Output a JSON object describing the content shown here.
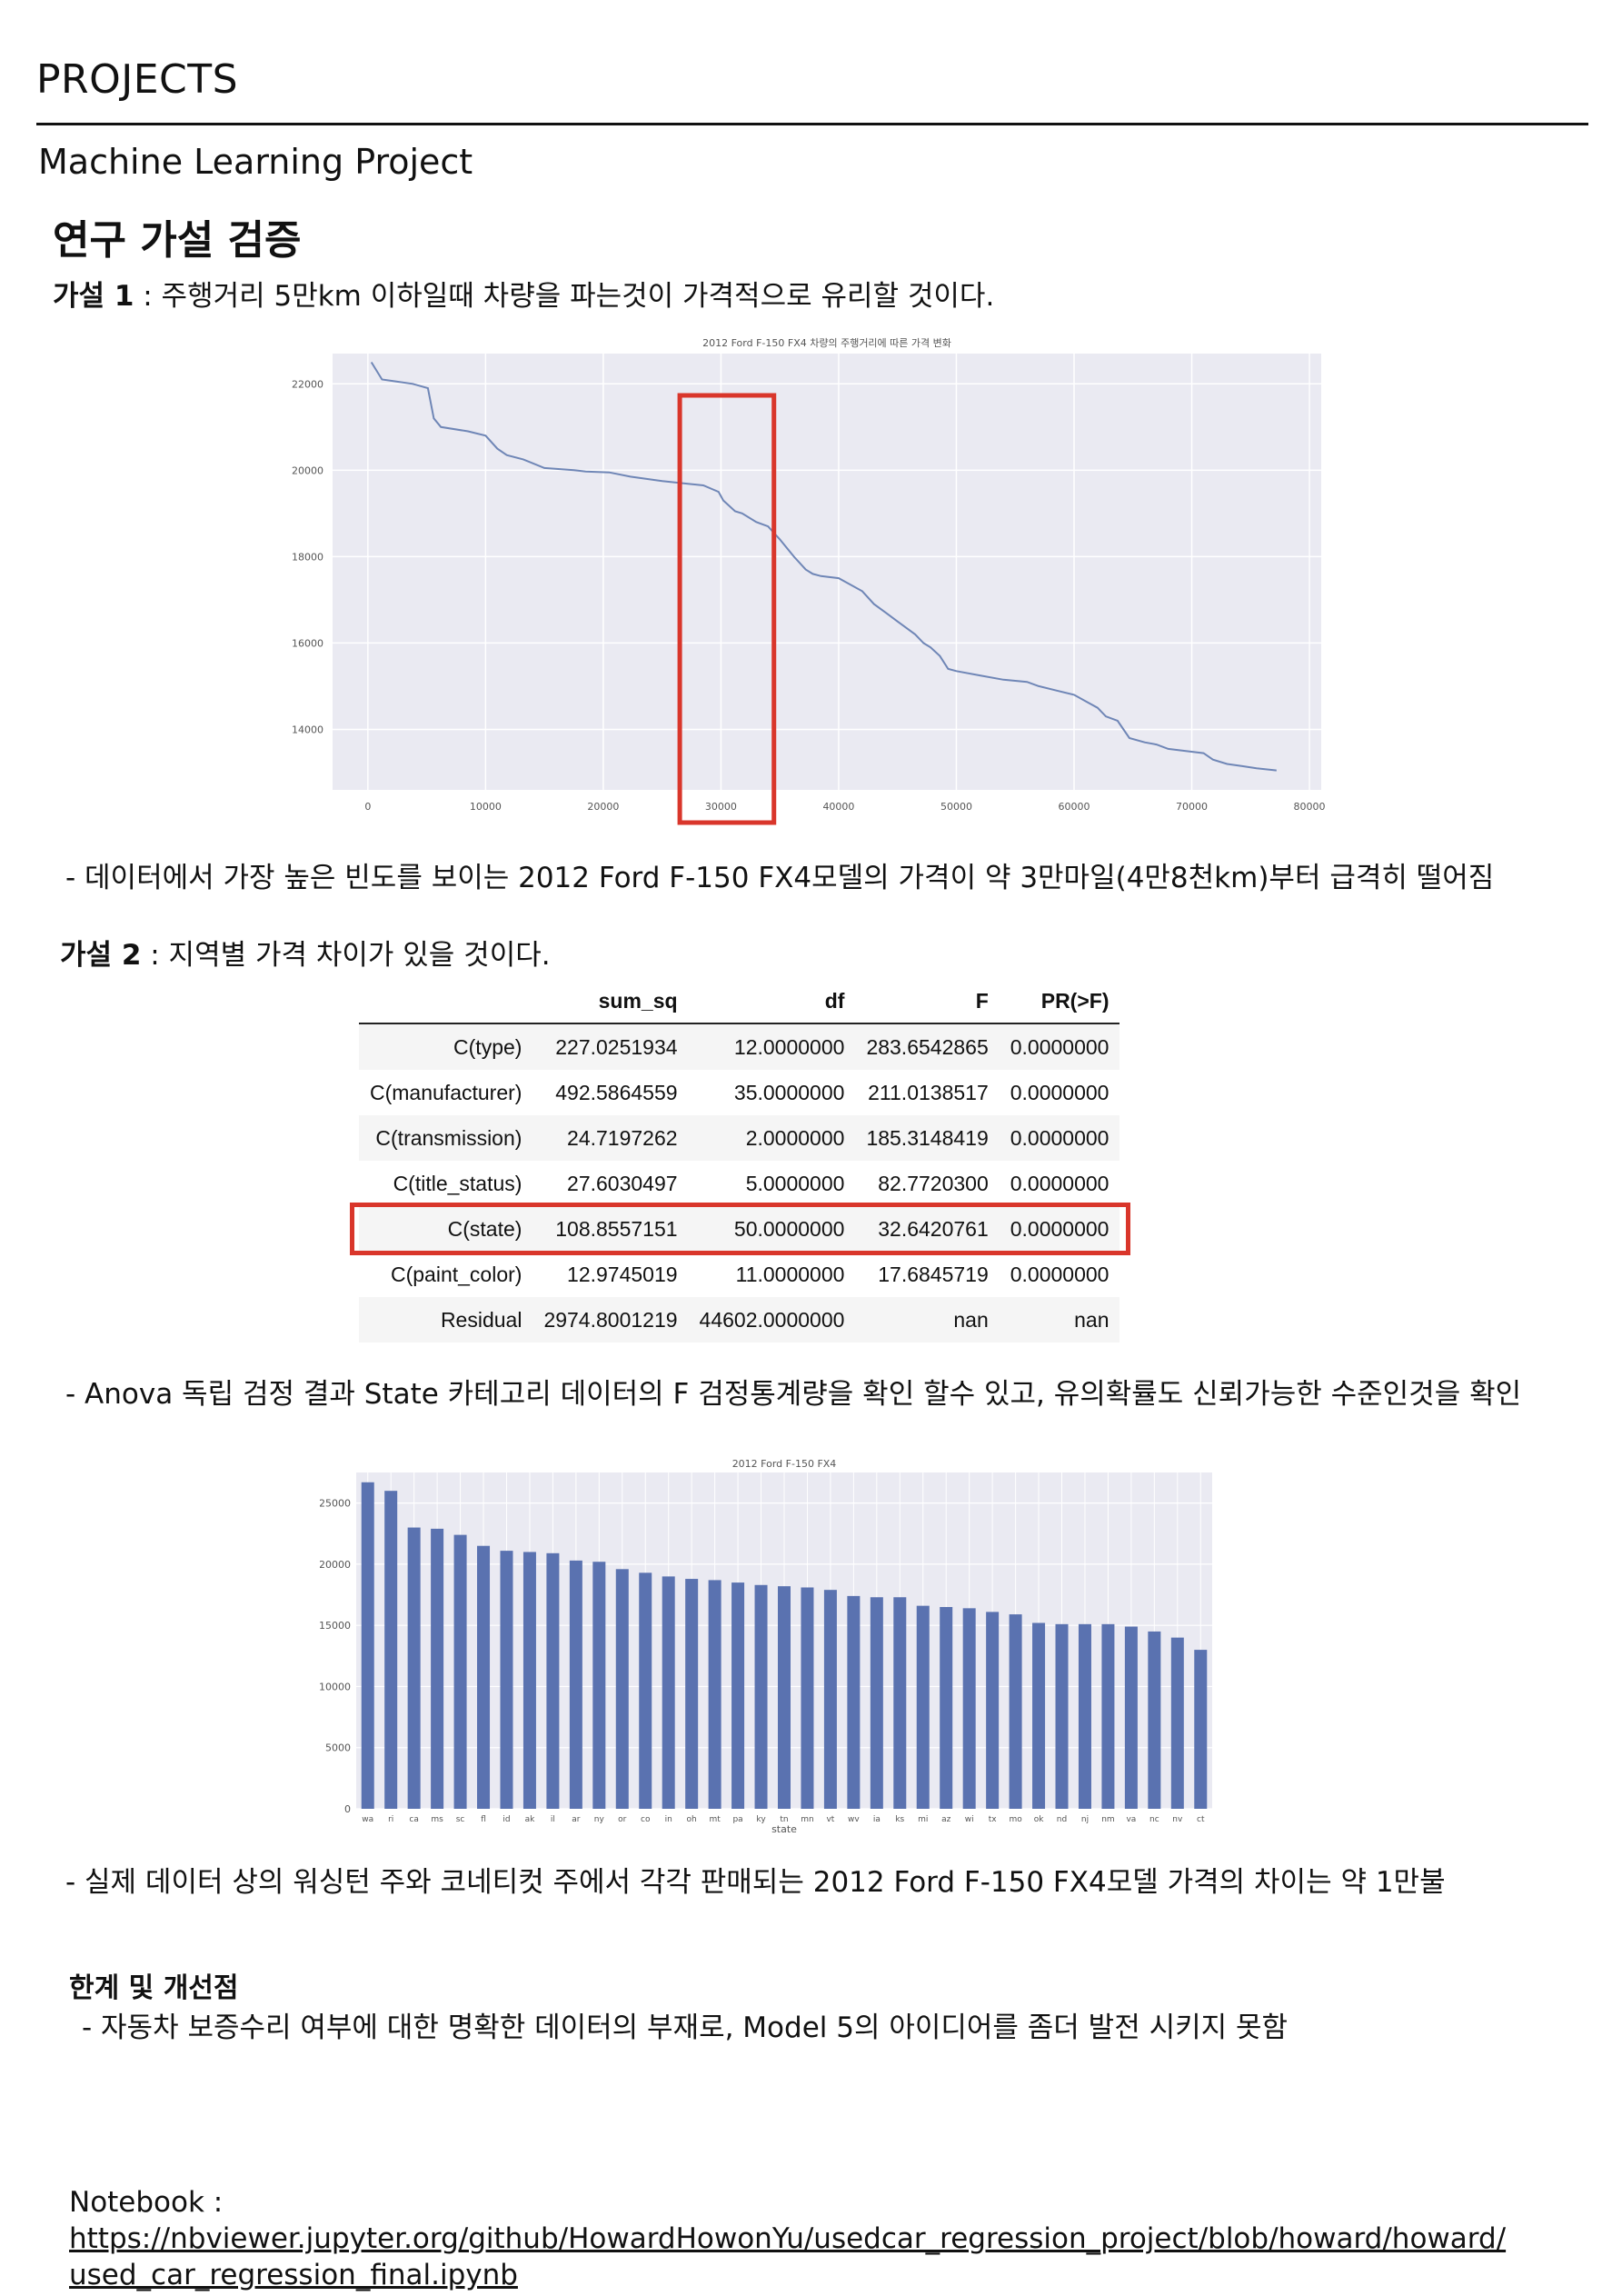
{
  "header": {
    "title": "PROJECTS"
  },
  "subtitle": "Machine Learning Project",
  "section_title": "연구 가설 검증",
  "hypothesis1": {
    "label": "가설 1",
    "text": " : 주행거리 5만km 이하일때 차량을 파는것이 가격적으로 유리할 것이다."
  },
  "note1": "- 데이터에서 가장 높은 빈도를 보이는 2012 Ford F-150 FX4모델의 가격이 약 3만마일(4만8천km)부터 급격히 떨어짐",
  "hypothesis2": {
    "label": "가설 2",
    "text": " : 지역별 가격 차이가 있을 것이다."
  },
  "note2": "- Anova 독립 검정 결과 State 카테고리 데이터의 F 검정통계량을 확인 할수 있고, 유의확률도 신뢰가능한 수준인것을 확인",
  "note3": "- 실제 데이터 상의 워싱턴 주와 코네티컷 주에서 각각 판매되는 2012 Ford F-150 FX4모델 가격의 차이는 약 1만불",
  "limits": {
    "title": "한계 및 개선점",
    "text": "- 자동차 보증수리 여부에 대한 명확한 데이터의 부재로, Model 5의 아이디어를 좀더 발전 시키지 못함"
  },
  "notebook": {
    "label": "Notebook : ",
    "url_line1": "https://nbviewer.jupyter.org/github/HowardHowonYu/usedcar_regression_project/blob/howard/howard/",
    "url_line2": "used_car_regression_final.ipynb"
  },
  "anova": {
    "columns": [
      "",
      "sum_sq",
      "df",
      "F",
      "PR(>F)"
    ],
    "rows": [
      [
        "C(type)",
        "227.0251934",
        "12.0000000",
        "283.6542865",
        "0.0000000"
      ],
      [
        "C(manufacturer)",
        "492.5864559",
        "35.0000000",
        "211.0138517",
        "0.0000000"
      ],
      [
        "C(transmission)",
        "24.7197262",
        "2.0000000",
        "185.3148419",
        "0.0000000"
      ],
      [
        "C(title_status)",
        "27.6030497",
        "5.0000000",
        "82.7720300",
        "0.0000000"
      ],
      [
        "C(state)",
        "108.8557151",
        "50.0000000",
        "32.6420761",
        "0.0000000"
      ],
      [
        "C(paint_color)",
        "12.9745019",
        "11.0000000",
        "17.6845719",
        "0.0000000"
      ],
      [
        "Residual",
        "2974.8001219",
        "44602.0000000",
        "nan",
        "nan"
      ]
    ],
    "highlight_row": 4,
    "highlight_color": "#d9362b"
  },
  "chart_data": [
    {
      "type": "line",
      "title": "2012 Ford F-150 FX4 차량의 주행거리에 따른 가격 변화",
      "xlim": [
        -3000,
        81000
      ],
      "ylim": [
        12600,
        22700
      ],
      "xticks": [
        0,
        10000,
        20000,
        30000,
        40000,
        50000,
        60000,
        70000,
        80000
      ],
      "yticks": [
        14000,
        16000,
        18000,
        20000,
        22000
      ],
      "line_color": "#6f86b6",
      "highlight_box": {
        "x0": 26500,
        "x1": 34500,
        "color": "#d9362b"
      },
      "x": [
        300,
        1200,
        2500,
        3800,
        5100,
        5600,
        6200,
        8500,
        10000,
        11000,
        11800,
        13200,
        15000,
        17500,
        18500,
        20500,
        22300,
        25000,
        28500,
        29800,
        30200,
        31200,
        31800,
        33000,
        34000,
        35000,
        36200,
        37200,
        37800,
        38500,
        40000,
        42000,
        43000,
        44000,
        45000,
        45500,
        46500,
        47200,
        47800,
        48600,
        49300,
        50000,
        52000,
        54000,
        56000,
        57000,
        58500,
        60000,
        61000,
        62000,
        62700,
        63700,
        64700,
        66000,
        67000,
        68000,
        69500,
        71000,
        71800,
        73000,
        74300,
        75500,
        77200
      ],
      "y": [
        22500,
        22100,
        22050,
        22000,
        21900,
        21200,
        21000,
        20900,
        20800,
        20500,
        20350,
        20250,
        20050,
        20000,
        19970,
        19950,
        19850,
        19750,
        19650,
        19500,
        19300,
        19050,
        19000,
        18800,
        18700,
        18400,
        18000,
        17700,
        17600,
        17550,
        17500,
        17200,
        16900,
        16700,
        16500,
        16400,
        16200,
        16000,
        15900,
        15700,
        15400,
        15350,
        15250,
        15150,
        15100,
        15000,
        14900,
        14800,
        14650,
        14500,
        14300,
        14200,
        13800,
        13700,
        13650,
        13550,
        13500,
        13450,
        13300,
        13200,
        13150,
        13100,
        13050
      ]
    },
    {
      "type": "bar",
      "title": "2012 Ford F-150 FX4",
      "xlabel": "state",
      "ylim": [
        0,
        27500
      ],
      "yticks": [
        0,
        5000,
        10000,
        15000,
        20000,
        25000
      ],
      "bar_color": "#5a72b0",
      "categories": [
        "wa",
        "ri",
        "ca",
        "ms",
        "sc",
        "fl",
        "id",
        "ak",
        "il",
        "ar",
        "ny",
        "or",
        "co",
        "in",
        "oh",
        "mt",
        "pa",
        "ky",
        "tn",
        "mn",
        "vt",
        "wv",
        "ia",
        "ks",
        "mi",
        "az",
        "wi",
        "tx",
        "mo",
        "ok",
        "nd",
        "nj",
        "nm",
        "va",
        "nc",
        "nv",
        "ct"
      ],
      "values": [
        26700,
        26000,
        23000,
        22900,
        22400,
        21500,
        21100,
        21000,
        20900,
        20300,
        20200,
        19600,
        19300,
        19000,
        18800,
        18700,
        18500,
        18300,
        18200,
        18100,
        17900,
        17400,
        17300,
        17300,
        16600,
        16500,
        16400,
        16100,
        15900,
        15200,
        15100,
        15100,
        15100,
        14900,
        14500,
        14000,
        13000
      ]
    }
  ]
}
